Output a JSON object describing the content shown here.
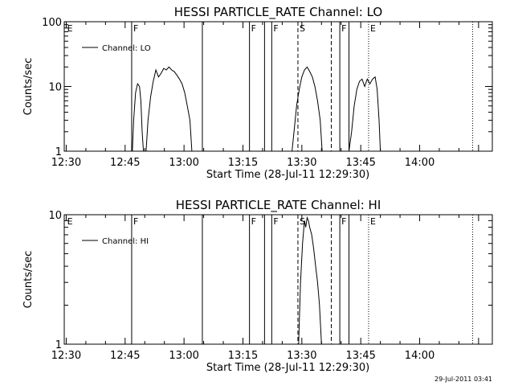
{
  "timestamp": "29-Jul-2011 03:41",
  "chart_data": [
    {
      "type": "line",
      "title": "HESSI PARTICLE_RATE Channel: LO",
      "xlabel": "Start Time (28-Jul-11 12:29:30)",
      "ylabel": "Counts/sec",
      "y_scale": "log",
      "ylim": [
        1,
        100
      ],
      "y_ticks": [
        {
          "v": 1,
          "label": "1"
        },
        {
          "v": 10,
          "label": "10"
        },
        {
          "v": 100,
          "label": "100"
        }
      ],
      "xlim": [
        "12:29:30",
        "14:18:30"
      ],
      "x_ticks": [
        "12:30",
        "12:45",
        "13:00",
        "13:15",
        "13:30",
        "13:45",
        "14:00"
      ],
      "legend": {
        "position": "top-left",
        "label": "Channel: LO"
      },
      "series": [
        {
          "name": "Channel: LO",
          "segments": [
            [
              [
                "12:46:50",
                1
              ],
              [
                "12:47:10",
                3
              ],
              [
                "12:47:40",
                8
              ],
              [
                "12:48:10",
                11
              ],
              [
                "12:48:40",
                10
              ],
              [
                "12:49:00",
                6
              ],
              [
                "12:49:20",
                2
              ],
              [
                "12:49:40",
                1
              ]
            ],
            [
              [
                "12:50:20",
                1
              ],
              [
                "12:50:50",
                3
              ],
              [
                "12:51:30",
                7
              ],
              [
                "12:52:10",
                12
              ],
              [
                "12:52:50",
                18
              ],
              [
                "12:53:30",
                14
              ],
              [
                "12:54:10",
                16
              ],
              [
                "12:54:50",
                19
              ],
              [
                "12:55:30",
                18
              ],
              [
                "12:56:10",
                20
              ],
              [
                "12:56:50",
                18
              ],
              [
                "12:57:30",
                17
              ],
              [
                "12:58:10",
                15
              ],
              [
                "12:58:50",
                13
              ],
              [
                "12:59:30",
                11
              ],
              [
                "13:00:10",
                8
              ],
              [
                "13:00:50",
                5
              ],
              [
                "13:01:30",
                3
              ],
              [
                "13:02:00",
                1
              ]
            ],
            [
              [
                "13:27:30",
                1
              ],
              [
                "13:28:00",
                2
              ],
              [
                "13:28:40",
                5
              ],
              [
                "13:29:20",
                9
              ],
              [
                "13:30:00",
                14
              ],
              [
                "13:30:40",
                18
              ],
              [
                "13:31:20",
                20
              ],
              [
                "13:32:00",
                17
              ],
              [
                "13:32:40",
                14
              ],
              [
                "13:33:20",
                10
              ],
              [
                "13:34:00",
                6
              ],
              [
                "13:34:40",
                3
              ],
              [
                "13:35:10",
                1
              ]
            ],
            [
              [
                "13:42:00",
                1
              ],
              [
                "13:42:40",
                2
              ],
              [
                "13:43:20",
                5
              ],
              [
                "13:44:00",
                9
              ],
              [
                "13:44:40",
                12
              ],
              [
                "13:45:20",
                13
              ],
              [
                "13:46:00",
                10
              ],
              [
                "13:46:40",
                13
              ],
              [
                "13:47:20",
                11
              ],
              [
                "13:48:00",
                13
              ],
              [
                "13:48:40",
                14
              ],
              [
                "13:49:10",
                9
              ],
              [
                "13:49:40",
                3
              ],
              [
                "13:50:00",
                1
              ]
            ]
          ]
        }
      ],
      "markers": [
        {
          "time": "12:29:50",
          "label": "E",
          "style": "none"
        },
        {
          "time": "12:46:40",
          "label": "F",
          "style": "solid"
        },
        {
          "time": "13:04:40",
          "label": "",
          "style": "solid"
        },
        {
          "time": "13:16:40",
          "label": "F",
          "style": "solid"
        },
        {
          "time": "13:20:30",
          "label": "",
          "style": "solid"
        },
        {
          "time": "13:22:20",
          "label": "F",
          "style": "solid"
        },
        {
          "time": "13:29:00",
          "label": "S",
          "style": "dashed"
        },
        {
          "time": "13:37:30",
          "label": "",
          "style": "dashed"
        },
        {
          "time": "13:39:40",
          "label": "F",
          "style": "solid"
        },
        {
          "time": "13:42:00",
          "label": "",
          "style": "solid"
        },
        {
          "time": "13:47:00",
          "label": "E",
          "style": "dotted"
        },
        {
          "time": "14:13:30",
          "label": "",
          "style": "dotted"
        }
      ]
    },
    {
      "type": "line",
      "title": "HESSI PARTICLE_RATE Channel: HI",
      "xlabel": "Start Time (28-Jul-11 12:29:30)",
      "ylabel": "Counts/sec",
      "y_scale": "log",
      "ylim": [
        1,
        10
      ],
      "y_ticks": [
        {
          "v": 1,
          "label": "1"
        },
        {
          "v": 10,
          "label": "10"
        }
      ],
      "xlim": [
        "12:29:30",
        "14:18:30"
      ],
      "x_ticks": [
        "12:30",
        "12:45",
        "13:00",
        "13:15",
        "13:30",
        "13:45",
        "14:00"
      ],
      "legend": {
        "position": "top-left",
        "label": "Channel: HI"
      },
      "series": [
        {
          "name": "Channel: HI",
          "segments": [
            [
              [
                "13:29:10",
                1
              ],
              [
                "13:29:40",
                3
              ],
              [
                "13:30:10",
                6
              ],
              [
                "13:30:40",
                9
              ],
              [
                "13:31:00",
                8
              ],
              [
                "13:31:20",
                9.5
              ],
              [
                "13:31:40",
                9
              ],
              [
                "13:32:00",
                8
              ],
              [
                "13:32:30",
                7
              ],
              [
                "13:33:00",
                5.5
              ],
              [
                "13:33:30",
                4
              ],
              [
                "13:34:00",
                3
              ],
              [
                "13:34:30",
                2
              ],
              [
                "13:35:00",
                1
              ]
            ]
          ]
        }
      ],
      "markers": [
        {
          "time": "12:29:50",
          "label": "E",
          "style": "none"
        },
        {
          "time": "12:46:40",
          "label": "F",
          "style": "solid"
        },
        {
          "time": "13:04:40",
          "label": "",
          "style": "solid"
        },
        {
          "time": "13:16:40",
          "label": "F",
          "style": "solid"
        },
        {
          "time": "13:20:30",
          "label": "",
          "style": "solid"
        },
        {
          "time": "13:22:20",
          "label": "F",
          "style": "solid"
        },
        {
          "time": "13:29:00",
          "label": "S",
          "style": "dashed"
        },
        {
          "time": "13:37:30",
          "label": "",
          "style": "dashed"
        },
        {
          "time": "13:39:40",
          "label": "F",
          "style": "solid"
        },
        {
          "time": "13:42:00",
          "label": "",
          "style": "solid"
        },
        {
          "time": "13:47:00",
          "label": "E",
          "style": "dotted"
        },
        {
          "time": "14:13:30",
          "label": "",
          "style": "dotted"
        }
      ]
    }
  ]
}
